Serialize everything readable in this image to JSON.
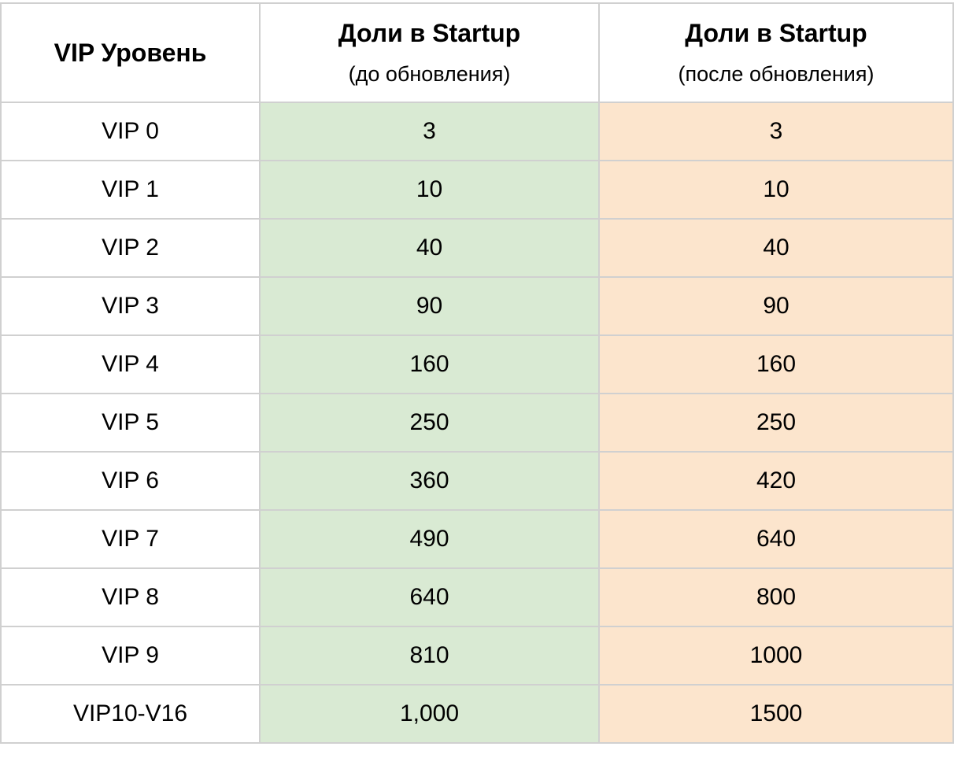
{
  "table": {
    "header": [
      {
        "title": "VIP Уровень"
      },
      {
        "title": "Доли в Startup",
        "subtitle": "(до обновления)"
      },
      {
        "title": "Доли в Startup",
        "subtitle": "(после обновления)"
      }
    ],
    "rows": [
      [
        "VIP 0",
        "3",
        "3"
      ],
      [
        "VIP 1",
        "10",
        "10"
      ],
      [
        "VIP 2",
        "40",
        "40"
      ],
      [
        "VIP 3",
        "90",
        "90"
      ],
      [
        "VIP 4",
        "160",
        "160"
      ],
      [
        "VIP 5",
        "250",
        "250"
      ],
      [
        "VIP 6",
        "360",
        "420"
      ],
      [
        "VIP 7",
        "490",
        "640"
      ],
      [
        "VIP 8",
        "640",
        "800"
      ],
      [
        "VIP 9",
        "810",
        "1000"
      ],
      [
        "VIP10-V16",
        "1,000",
        "1500"
      ]
    ]
  }
}
